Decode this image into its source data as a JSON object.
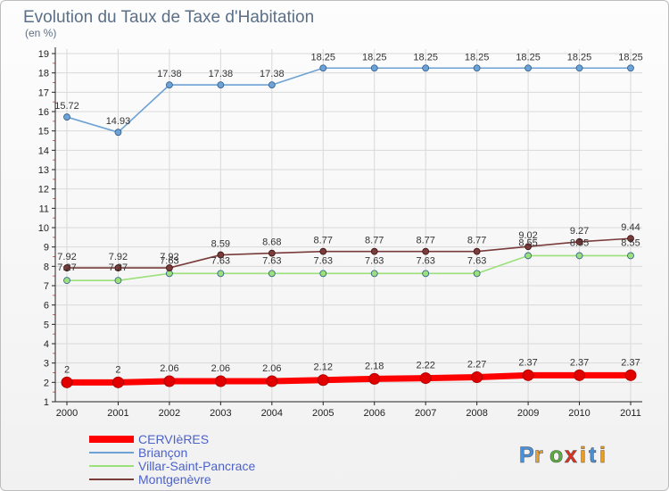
{
  "chart_data": {
    "type": "line",
    "title": "Evolution du Taux de Taxe d'Habitation",
    "subtitle": "(en %)",
    "xlabel": "",
    "ylabel": "",
    "ylim": [
      1,
      19
    ],
    "yticks": [
      "1",
      "2",
      "3",
      "4",
      "5",
      "6",
      "7",
      "8",
      "9",
      "10",
      "11",
      "12",
      "13",
      "14",
      "15",
      "16",
      "17",
      "18",
      "19"
    ],
    "categories": [
      "2000",
      "2001",
      "2002",
      "2003",
      "2004",
      "2005",
      "2006",
      "2007",
      "2008",
      "2009",
      "2010",
      "2011"
    ],
    "grid": true,
    "legend_position": "bottom-left",
    "series": [
      {
        "name": "CERVIèRES",
        "color": "#ff0000",
        "values": [
          2,
          2,
          2.06,
          2.06,
          2.06,
          2.12,
          2.18,
          2.22,
          2.27,
          2.37,
          2.37,
          2.37
        ],
        "labels": [
          "2",
          "2",
          "2.06",
          "2.06",
          "2.06",
          "2.12",
          "2.18",
          "2.22",
          "2.27",
          "2.37",
          "2.37",
          "2.37"
        ]
      },
      {
        "name": "Briançon",
        "color": "#6ea2d4",
        "values": [
          15.72,
          14.93,
          17.38,
          17.38,
          17.38,
          18.25,
          18.25,
          18.25,
          18.25,
          18.25,
          18.25,
          18.25
        ],
        "labels": [
          "15.72",
          "14.93",
          "17.38",
          "17.38",
          "17.38",
          "18.25",
          "18.25",
          "18.25",
          "18.25",
          "18.25",
          "18.25",
          "18.25"
        ]
      },
      {
        "name": "Villar-Saint-Pancrace",
        "color": "#9be07a",
        "values": [
          7.27,
          7.27,
          7.63,
          7.63,
          7.63,
          7.63,
          7.63,
          7.63,
          7.63,
          8.55,
          8.55,
          8.55
        ],
        "labels": [
          "7.27",
          "7.27",
          "7.63",
          "7.63",
          "7.63",
          "7.63",
          "7.63",
          "7.63",
          "7.63",
          "8.55",
          "8.55",
          "8.55"
        ]
      },
      {
        "name": "Montgenèvre",
        "color": "#7a3b3b",
        "values": [
          7.92,
          7.92,
          7.92,
          8.59,
          8.68,
          8.77,
          8.77,
          8.77,
          8.77,
          9.02,
          9.27,
          9.44
        ],
        "labels": [
          "7.92",
          "7.92",
          "7.92",
          "8.59",
          "8.68",
          "8.77",
          "8.77",
          "8.77",
          "8.77",
          "9.02",
          "9.27",
          "9.44"
        ]
      }
    ]
  },
  "logo": {
    "letters": [
      "P",
      "r",
      "o",
      "x",
      "i",
      "t",
      "i"
    ],
    "colors": [
      "#4a90d9",
      "#f0a020",
      "#58b03a",
      "#e03020",
      "#f0a020",
      "#4a90d9",
      "#f0a020"
    ]
  }
}
